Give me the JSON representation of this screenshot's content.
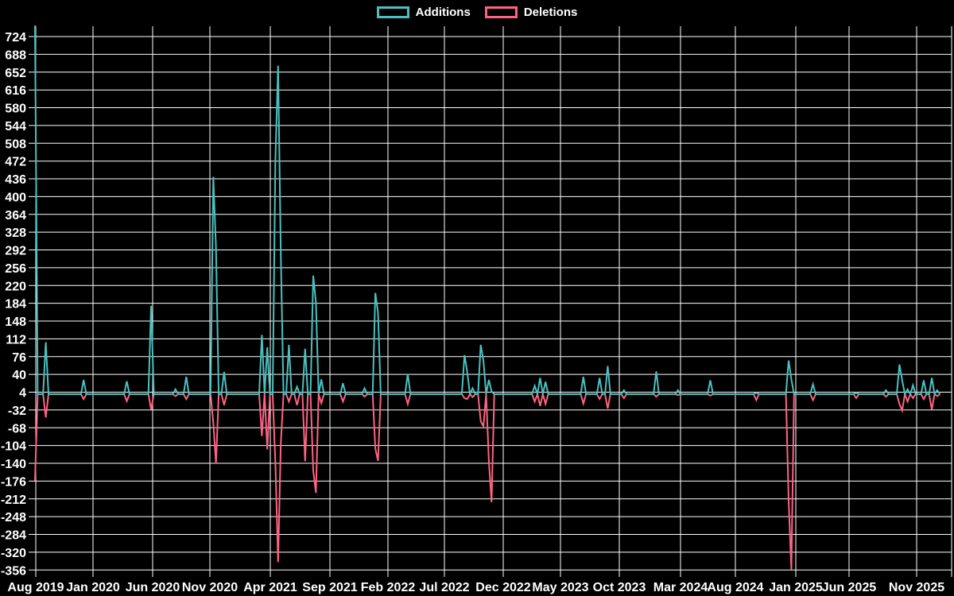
{
  "colors": {
    "background": "#000000",
    "grid": "#ffffff",
    "text": "#ffffff",
    "additions": "#4bc0c0",
    "deletions": "#ff6384"
  },
  "legend": {
    "items": [
      {
        "label": "Additions",
        "color": "#4bc0c0"
      },
      {
        "label": "Deletions",
        "color": "#ff6384"
      }
    ]
  },
  "chart_data": {
    "type": "line",
    "title": "",
    "description": "Weekly code additions (teal) and deletions (pink) over time on a black background with white grid",
    "legend_position": "top",
    "grid": true,
    "x_axis": {
      "unit": "week",
      "range_label": "Aug 2019 - Nov 2025",
      "tick_labels": [
        "Aug 2019",
        "Jan 2020",
        "Jun 2020",
        "Nov 2020",
        "Apr 2021",
        "Sep 2021",
        "Feb 2022",
        "Jul 2022",
        "Dec 2022",
        "May 2023",
        "Oct 2023",
        "Mar 2024",
        "Aug 2024",
        "Jan 2025",
        "Jun 2025",
        "Nov 2025"
      ]
    },
    "y_axis": {
      "min": -356,
      "max": 724,
      "step": 36,
      "tick_values": [
        724,
        688,
        652,
        616,
        580,
        544,
        508,
        472,
        436,
        400,
        364,
        328,
        292,
        256,
        220,
        184,
        148,
        112,
        76,
        40,
        4,
        -32,
        -68,
        -104,
        -140,
        -176,
        -212,
        -248,
        -284,
        -320,
        -356
      ]
    },
    "series_names": [
      "Additions",
      "Deletions"
    ],
    "baseline_value": 0,
    "weeks_total": 336,
    "weekly_points_format": [
      "week_index",
      "additions",
      "deletions"
    ],
    "weekly_points": [
      [
        0,
        750,
        -175
      ],
      [
        4,
        105,
        -47
      ],
      [
        18,
        29,
        -10
      ],
      [
        34,
        26,
        -14
      ],
      [
        43,
        179,
        -31
      ],
      [
        52,
        10,
        -4
      ],
      [
        56,
        35,
        -10
      ],
      [
        66,
        440,
        -58
      ],
      [
        67,
        295,
        -140
      ],
      [
        70,
        45,
        -22
      ],
      [
        84,
        120,
        -85
      ],
      [
        86,
        95,
        -112
      ],
      [
        89,
        475,
        -140
      ],
      [
        90,
        665,
        -340
      ],
      [
        91,
        285,
        -100
      ],
      [
        94,
        100,
        -15
      ],
      [
        97,
        15,
        -22
      ],
      [
        100,
        92,
        -136
      ],
      [
        103,
        240,
        -155
      ],
      [
        104,
        185,
        -200
      ],
      [
        106,
        30,
        -18
      ],
      [
        114,
        22,
        -15
      ],
      [
        122,
        12,
        -5
      ],
      [
        126,
        205,
        -110
      ],
      [
        127,
        165,
        -135
      ],
      [
        138,
        41,
        -20
      ],
      [
        159,
        79,
        -8
      ],
      [
        160,
        45,
        -10
      ],
      [
        162,
        12,
        -6
      ],
      [
        165,
        100,
        -55
      ],
      [
        166,
        68,
        -65
      ],
      [
        168,
        29,
        -135
      ],
      [
        169,
        6,
        -219
      ],
      [
        185,
        17,
        -15
      ],
      [
        187,
        33,
        -24
      ],
      [
        189,
        25,
        -20
      ],
      [
        203,
        35,
        -19
      ],
      [
        209,
        33,
        -10
      ],
      [
        212,
        57,
        -29
      ],
      [
        218,
        8,
        -8
      ],
      [
        230,
        46,
        -5
      ],
      [
        238,
        8,
        -2
      ],
      [
        250,
        28,
        -3
      ],
      [
        267,
        3,
        -12
      ],
      [
        279,
        68,
        -215
      ],
      [
        280,
        30,
        -355
      ],
      [
        288,
        20,
        -12
      ],
      [
        304,
        3,
        -8
      ],
      [
        315,
        8,
        -5
      ],
      [
        320,
        60,
        -20
      ],
      [
        321,
        28,
        -33
      ],
      [
        323,
        10,
        -15
      ],
      [
        325,
        18,
        -8
      ],
      [
        329,
        28,
        -10
      ],
      [
        332,
        33,
        -31
      ],
      [
        334,
        8,
        -4
      ]
    ],
    "notes": "Weeks not listed have 0 additions and 0 deletions. Week 0 additions spike exceeds the top of the plot and is clipped (>741)."
  }
}
